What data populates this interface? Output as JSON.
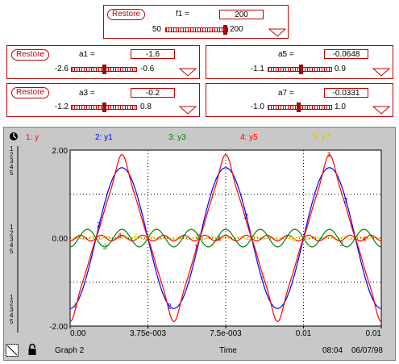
{
  "f1": {
    "restore": "Restore",
    "label": "f1 =",
    "value": "200",
    "min": "50",
    "max": "200",
    "pos": 1.0
  },
  "a1": {
    "restore": "Restore",
    "label": "a1 =",
    "value": "-1.6",
    "min": "-2.6",
    "max": "-0.6",
    "pos": 0.5
  },
  "a3": {
    "restore": "Restore",
    "label": "a3 =",
    "value": "-0.2",
    "min": "-1.2",
    "max": "0.8",
    "pos": 0.5
  },
  "a5": {
    "label": "a5 =",
    "value": "-0.0648",
    "min": "-1.1",
    "max": "0.9",
    "pos": 0.52
  },
  "a7": {
    "label": "a7 =",
    "value": "-0.0331",
    "min": "-1.0",
    "max": "1.0",
    "pos": 0.48
  },
  "legend": [
    {
      "label": "1: y",
      "color": "#ff0000"
    },
    {
      "label": "2: y1",
      "color": "#0000ff"
    },
    {
      "label": "3: y3",
      "color": "#008000"
    },
    {
      "label": "4: y5",
      "color": "#ff0000"
    },
    {
      "label": "5: y7",
      "color": "#e0e000"
    }
  ],
  "axis_stack": [
    "1",
    "2",
    "3",
    "4",
    "5"
  ],
  "footer": {
    "graph": "Graph 2",
    "xlabel": "Time",
    "time": "08:04",
    "date": "06/07/98"
  },
  "chart_data": {
    "type": "line",
    "x_ticks": [
      "0.00",
      "3.75e-003",
      "7.5e-003",
      "0.01",
      "0.01"
    ],
    "y_ticks": [
      "2.00",
      "0.00",
      "-2.00"
    ],
    "xlim": [
      0,
      0.015
    ],
    "ylim": [
      -2,
      2
    ],
    "grid": true,
    "series": [
      {
        "name": "y",
        "color": "#ff0000",
        "freq": 200,
        "terms": [
          [
            1,
            -1.6
          ],
          [
            3,
            -0.2
          ],
          [
            5,
            -0.0648
          ],
          [
            7,
            -0.0331
          ]
        ]
      },
      {
        "name": "y1",
        "color": "#0000ff",
        "freq": 200,
        "terms": [
          [
            1,
            -1.6
          ]
        ]
      },
      {
        "name": "y3",
        "color": "#008000",
        "freq": 200,
        "terms": [
          [
            3,
            -0.2
          ]
        ]
      },
      {
        "name": "y5",
        "color": "#ff0000",
        "freq": 200,
        "terms": [
          [
            5,
            -0.0648
          ]
        ]
      },
      {
        "name": "y7",
        "color": "#e0e000",
        "freq": 200,
        "terms": [
          [
            7,
            -0.0331
          ]
        ]
      }
    ]
  }
}
